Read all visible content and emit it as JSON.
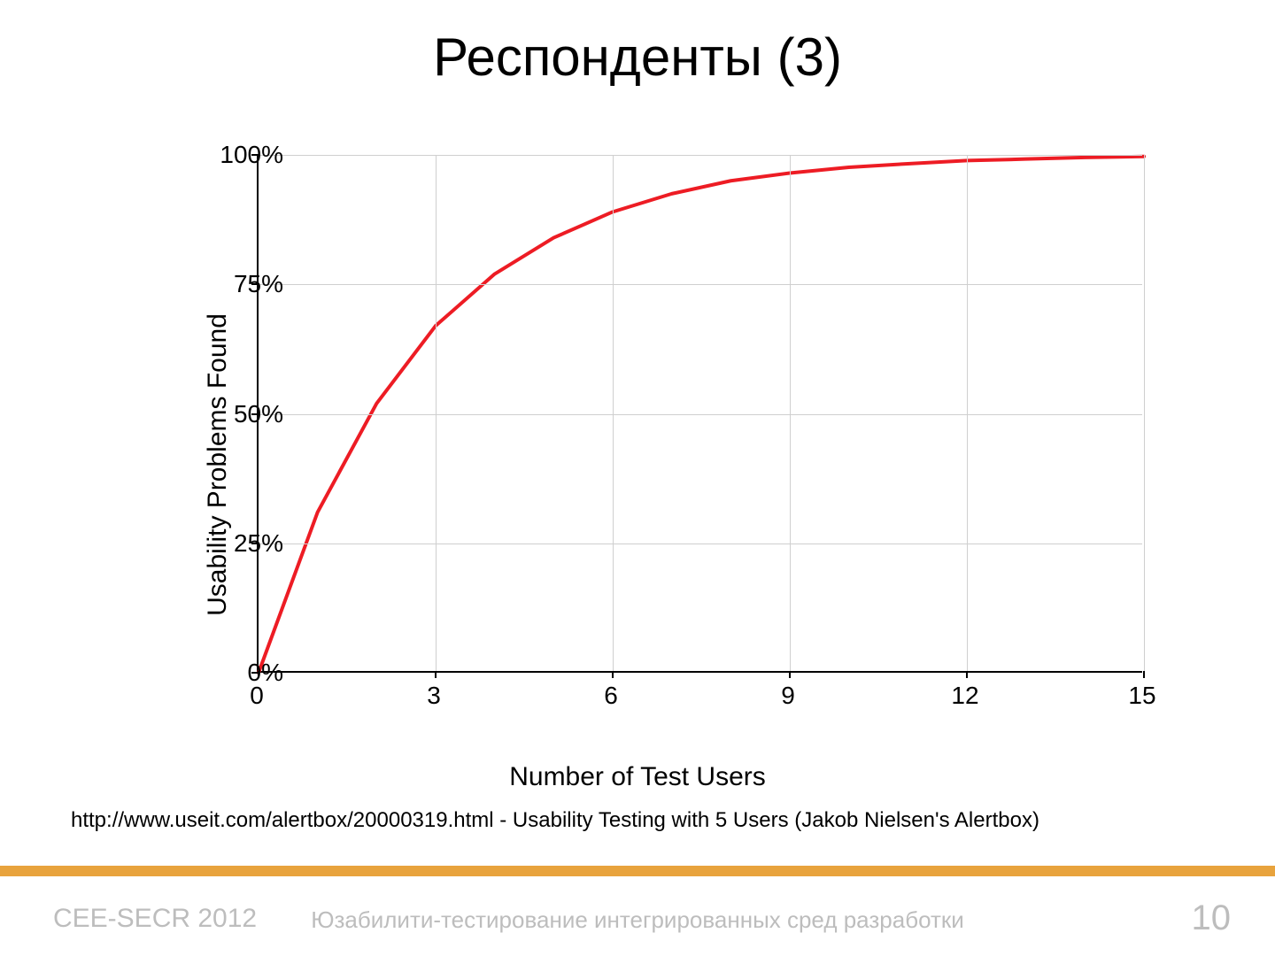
{
  "slide": {
    "title": "Респонденты (3)",
    "caption": "http://www.useit.com/alertbox/20000319.html - Usability Testing with 5 Users (Jakob Nielsen's Alertbox)",
    "footer_left": "CEE-SECR 2012",
    "footer_center": "Юзабилити-тестирование интегрированных сред разработки",
    "page_number": "10",
    "accent_bar_color": "#e8a33d"
  },
  "chart": {
    "type": "line",
    "xlabel": "Number of Test Users",
    "ylabel": "Usability Problems Found",
    "xlim": [
      0,
      15
    ],
    "ylim": [
      0,
      100
    ],
    "xticks": [
      0,
      3,
      6,
      9,
      12,
      15
    ],
    "yticks": [
      0,
      25,
      50,
      75,
      100
    ],
    "ytick_labels": [
      "0%",
      "25%",
      "50%",
      "75%",
      "100%"
    ],
    "xtick_labels": [
      "0",
      "3",
      "6",
      "9",
      "12",
      "15"
    ],
    "grid_x_at": [
      3,
      6,
      9,
      12,
      15
    ],
    "grid_y_at": [
      25,
      50,
      75,
      100
    ],
    "grid_color": "#cfcfcf",
    "axis_color": "#000000",
    "background_color": "#ffffff",
    "line_color": "#ed1c24",
    "line_width": 4,
    "label_fontsize": 30,
    "tick_fontsize": 28,
    "series": {
      "x": [
        0,
        1,
        2,
        3,
        4,
        5,
        6,
        7,
        8,
        9,
        10,
        11,
        12,
        13,
        14,
        15
      ],
      "y": [
        0,
        31,
        52,
        67,
        77,
        84,
        89,
        92.5,
        95,
        96.5,
        97.6,
        98.3,
        98.9,
        99.2,
        99.5,
        99.7
      ]
    }
  }
}
